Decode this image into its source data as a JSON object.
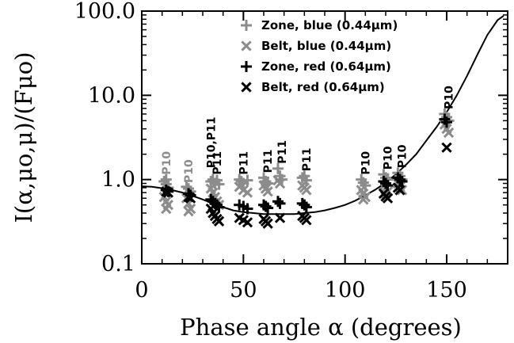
{
  "chart_data": {
    "type": "scatter",
    "xlabel": "Phase angle α (degrees)",
    "ylabel": "I(α,μo,μ)/(Fμo)",
    "xlim": [
      0,
      180
    ],
    "ylim": [
      0.1,
      100
    ],
    "yscale": "log",
    "x_ticks": [
      {
        "value": 0,
        "label": "0"
      },
      {
        "value": 50,
        "label": "50"
      },
      {
        "value": 100,
        "label": "100"
      },
      {
        "value": 150,
        "label": "150"
      }
    ],
    "y_ticks": [
      {
        "value": 0.1,
        "label": "0.1"
      },
      {
        "value": 1,
        "label": "1.0"
      },
      {
        "value": 10,
        "label": "10.0"
      },
      {
        "value": 100,
        "label": "100.0"
      }
    ],
    "legend_position": "top-right",
    "series": [
      {
        "name": "Zone, blue (0.44μm)",
        "marker": "plus",
        "color": "#8c8c8c",
        "points": [
          [
            11,
            0.95
          ],
          [
            12,
            1.0
          ],
          [
            12,
            0.88
          ],
          [
            13,
            0.8
          ],
          [
            22,
            0.82
          ],
          [
            23,
            0.78
          ],
          [
            24,
            0.72
          ],
          [
            34,
            0.95
          ],
          [
            35,
            1.0
          ],
          [
            36,
            0.9
          ],
          [
            37,
            0.98
          ],
          [
            38,
            0.88
          ],
          [
            48,
            1.0
          ],
          [
            49,
            0.95
          ],
          [
            50,
            0.9
          ],
          [
            52,
            0.98
          ],
          [
            60,
            1.05
          ],
          [
            61,
            0.95
          ],
          [
            62,
            0.9
          ],
          [
            67,
            1.35
          ],
          [
            68,
            1.1
          ],
          [
            69,
            1.0
          ],
          [
            79,
            1.05
          ],
          [
            80,
            1.1
          ],
          [
            81,
            0.98
          ],
          [
            108,
            1.0
          ],
          [
            109,
            0.92
          ],
          [
            110,
            0.85
          ],
          [
            119,
            1.15
          ],
          [
            120,
            1.05
          ],
          [
            121,
            1.0
          ],
          [
            126,
            1.2
          ],
          [
            127,
            1.1
          ],
          [
            128,
            1.0
          ],
          [
            149,
            6.0
          ],
          [
            150,
            5.5
          ],
          [
            151,
            5.0
          ]
        ]
      },
      {
        "name": "Belt, blue (0.44μm)",
        "marker": "cross",
        "color": "#8c8c8c",
        "points": [
          [
            11,
            0.62
          ],
          [
            12,
            0.55
          ],
          [
            13,
            0.5
          ],
          [
            12,
            0.45
          ],
          [
            22,
            0.6
          ],
          [
            23,
            0.52
          ],
          [
            24,
            0.45
          ],
          [
            23,
            0.42
          ],
          [
            34,
            0.78
          ],
          [
            35,
            0.7
          ],
          [
            36,
            0.62
          ],
          [
            37,
            0.55
          ],
          [
            38,
            0.5
          ],
          [
            48,
            0.82
          ],
          [
            50,
            0.75
          ],
          [
            52,
            0.7
          ],
          [
            60,
            0.85
          ],
          [
            61,
            0.78
          ],
          [
            62,
            0.72
          ],
          [
            67,
            0.98
          ],
          [
            68,
            0.9
          ],
          [
            79,
            0.85
          ],
          [
            80,
            0.8
          ],
          [
            81,
            0.75
          ],
          [
            108,
            0.75
          ],
          [
            109,
            0.68
          ],
          [
            110,
            0.62
          ],
          [
            109,
            0.58
          ],
          [
            119,
            0.85
          ],
          [
            120,
            0.78
          ],
          [
            121,
            0.72
          ],
          [
            120,
            0.68
          ],
          [
            126,
            0.9
          ],
          [
            127,
            0.82
          ],
          [
            128,
            0.75
          ],
          [
            149,
            4.5
          ],
          [
            150,
            4.0
          ],
          [
            151,
            3.6
          ]
        ]
      },
      {
        "name": "Zone, red (0.64μm)",
        "marker": "plus",
        "color": "#000000",
        "points": [
          [
            12,
            0.75
          ],
          [
            13,
            0.72
          ],
          [
            23,
            0.68
          ],
          [
            24,
            0.65
          ],
          [
            34,
            0.58
          ],
          [
            35,
            0.55
          ],
          [
            36,
            0.52
          ],
          [
            37,
            0.5
          ],
          [
            38,
            0.47
          ],
          [
            48,
            0.5
          ],
          [
            50,
            0.48
          ],
          [
            52,
            0.45
          ],
          [
            60,
            0.5
          ],
          [
            61,
            0.48
          ],
          [
            62,
            0.46
          ],
          [
            67,
            0.55
          ],
          [
            68,
            0.52
          ],
          [
            79,
            0.52
          ],
          [
            80,
            0.5
          ],
          [
            81,
            0.47
          ],
          [
            119,
            0.95
          ],
          [
            120,
            0.9
          ],
          [
            121,
            0.85
          ],
          [
            126,
            1.05
          ],
          [
            127,
            1.0
          ],
          [
            128,
            0.95
          ],
          [
            149,
            5.2
          ],
          [
            150,
            4.8
          ]
        ]
      },
      {
        "name": "Belt, red (0.64μm)",
        "marker": "cross",
        "color": "#000000",
        "points": [
          [
            12,
            0.72
          ],
          [
            13,
            0.7
          ],
          [
            23,
            0.62
          ],
          [
            24,
            0.6
          ],
          [
            34,
            0.45
          ],
          [
            35,
            0.4
          ],
          [
            36,
            0.37
          ],
          [
            37,
            0.34
          ],
          [
            38,
            0.32
          ],
          [
            48,
            0.35
          ],
          [
            50,
            0.33
          ],
          [
            52,
            0.31
          ],
          [
            60,
            0.34
          ],
          [
            61,
            0.32
          ],
          [
            62,
            0.3
          ],
          [
            68,
            0.35
          ],
          [
            79,
            0.37
          ],
          [
            80,
            0.35
          ],
          [
            81,
            0.33
          ],
          [
            119,
            0.68
          ],
          [
            120,
            0.63
          ],
          [
            121,
            0.6
          ],
          [
            126,
            0.8
          ],
          [
            127,
            0.75
          ],
          [
            150,
            2.4
          ]
        ]
      }
    ],
    "model_curve": [
      [
        0,
        0.83
      ],
      [
        5,
        0.82
      ],
      [
        10,
        0.79
      ],
      [
        15,
        0.75
      ],
      [
        20,
        0.7
      ],
      [
        25,
        0.64
      ],
      [
        30,
        0.58
      ],
      [
        35,
        0.52
      ],
      [
        40,
        0.47
      ],
      [
        45,
        0.43
      ],
      [
        50,
        0.41
      ],
      [
        55,
        0.4
      ],
      [
        60,
        0.39
      ],
      [
        65,
        0.39
      ],
      [
        70,
        0.39
      ],
      [
        75,
        0.39
      ],
      [
        80,
        0.4
      ],
      [
        85,
        0.41
      ],
      [
        90,
        0.43
      ],
      [
        95,
        0.46
      ],
      [
        100,
        0.5
      ],
      [
        105,
        0.56
      ],
      [
        110,
        0.65
      ],
      [
        115,
        0.76
      ],
      [
        120,
        0.92
      ],
      [
        125,
        1.15
      ],
      [
        130,
        1.5
      ],
      [
        135,
        2.0
      ],
      [
        140,
        2.9
      ],
      [
        145,
        4.2
      ],
      [
        150,
        6.3
      ],
      [
        155,
        10
      ],
      [
        160,
        17
      ],
      [
        165,
        30
      ],
      [
        170,
        52
      ],
      [
        175,
        78
      ],
      [
        178,
        88
      ]
    ],
    "annotations": [
      {
        "text": "P10",
        "x": 12,
        "y": 1.0,
        "color": "#8c8c8c"
      },
      {
        "text": "P10",
        "x": 23,
        "y": 0.8,
        "color": "#8c8c8c"
      },
      {
        "text": "P10,P11",
        "x": 34,
        "y": 1.2,
        "color": "#000000"
      },
      {
        "text": "P11",
        "x": 37,
        "y": 1.0,
        "color": "#000000"
      },
      {
        "text": "P11",
        "x": 50,
        "y": 1.0,
        "color": "#000000"
      },
      {
        "text": "P11",
        "x": 62,
        "y": 1.05,
        "color": "#000000"
      },
      {
        "text": "P11",
        "x": 69,
        "y": 1.35,
        "color": "#000000"
      },
      {
        "text": "P11",
        "x": 81,
        "y": 1.1,
        "color": "#000000"
      },
      {
        "text": "P10",
        "x": 110,
        "y": 1.0,
        "color": "#000000"
      },
      {
        "text": "P10",
        "x": 121,
        "y": 1.15,
        "color": "#000000"
      },
      {
        "text": "P10",
        "x": 128,
        "y": 1.2,
        "color": "#000000"
      },
      {
        "text": "P10",
        "x": 151,
        "y": 6.0,
        "color": "#000000"
      }
    ]
  }
}
